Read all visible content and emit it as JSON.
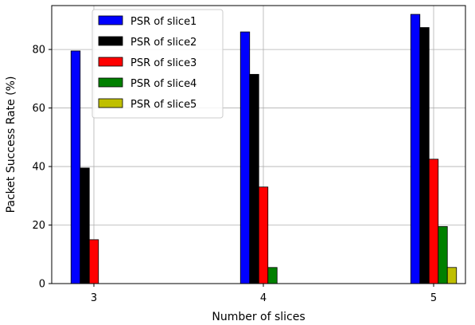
{
  "chart_data": {
    "type": "bar",
    "xlabel": "Number of slices",
    "ylabel": "Packet Success Rate (%)",
    "categories": [
      "3",
      "4",
      "5"
    ],
    "ylim": [
      0,
      95
    ],
    "yticks": [
      0,
      20,
      40,
      60,
      80
    ],
    "grid": true,
    "legend_position": "top-left",
    "series": [
      {
        "name": "PSR of slice1",
        "color": "#0000ff",
        "values": [
          79.5,
          86,
          92
        ]
      },
      {
        "name": "PSR of slice2",
        "color": "#000000",
        "values": [
          39.5,
          71.5,
          87.5
        ]
      },
      {
        "name": "PSR of slice3",
        "color": "#ff0000",
        "values": [
          15,
          33,
          42.5
        ]
      },
      {
        "name": "PSR of slice4",
        "color": "#008000",
        "values": [
          null,
          5.5,
          19.5
        ]
      },
      {
        "name": "PSR of slice5",
        "color": "#bfbf00",
        "values": [
          null,
          null,
          5.5
        ]
      }
    ]
  }
}
